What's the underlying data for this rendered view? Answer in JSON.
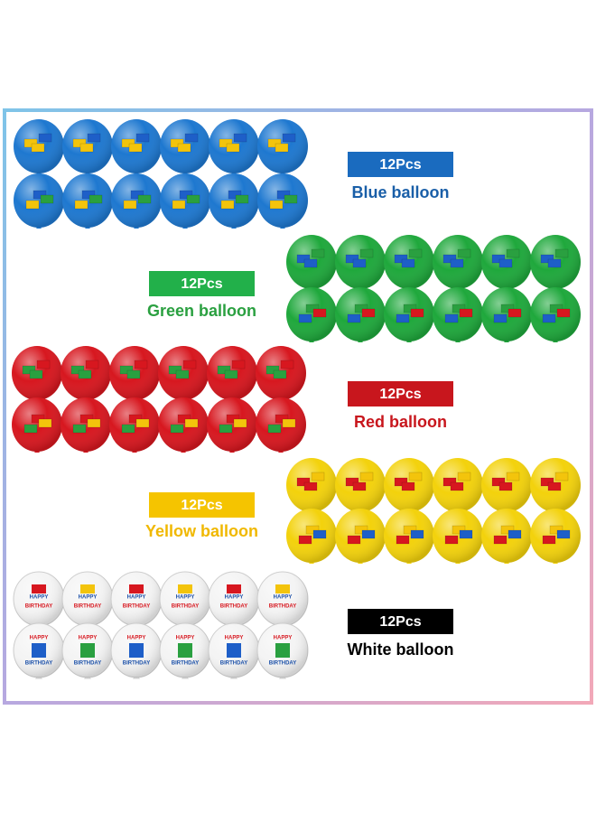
{
  "groups": [
    {
      "count": "12Pcs",
      "label": "Blue balloon"
    },
    {
      "count": "12Pcs",
      "label": "Green balloon"
    },
    {
      "count": "12Pcs",
      "label": "Red balloon"
    },
    {
      "count": "12Pcs",
      "label": "Yellow balloon"
    },
    {
      "count": "12Pcs",
      "label": "White balloon"
    }
  ],
  "white_balloon_print": [
    "HAPPY",
    "BIRTHDAY"
  ]
}
